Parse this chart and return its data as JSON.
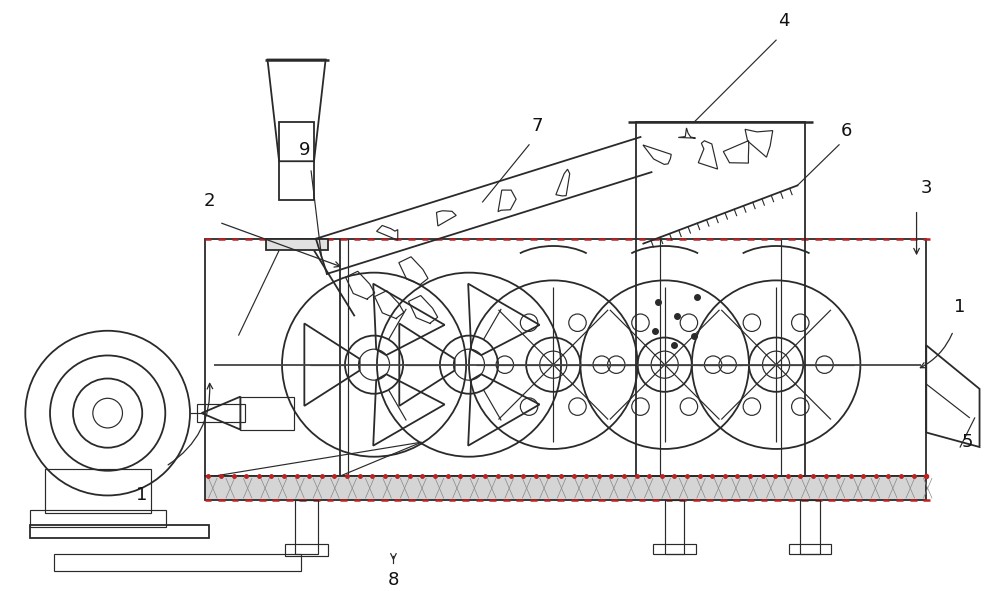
{
  "bg_color": "#ffffff",
  "line_color": "#2a2a2a",
  "red_dot": "#bb2222",
  "figsize": [
    10.0,
    5.91
  ],
  "dpi": 100
}
